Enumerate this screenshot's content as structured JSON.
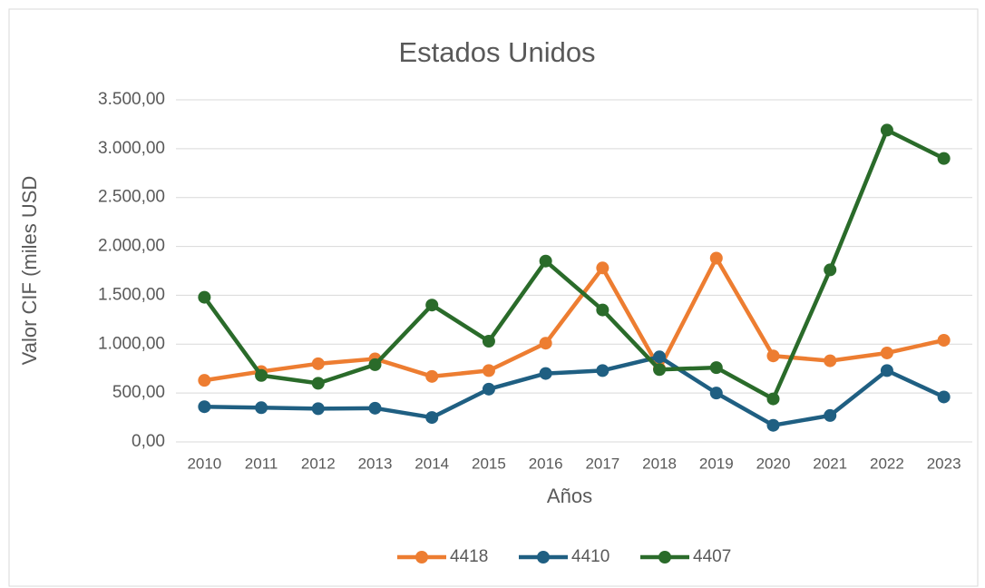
{
  "chart_data": {
    "type": "line",
    "title": "Estados Unidos",
    "x_label": "Años",
    "y_label": "Valor CIF (miles USD",
    "categories": [
      "2010",
      "2011",
      "2012",
      "2013",
      "2014",
      "2015",
      "2016",
      "2017",
      "2018",
      "2019",
      "2020",
      "2021",
      "2022",
      "2023"
    ],
    "series": [
      {
        "name": "4418",
        "color": "#ed7d31",
        "values": [
          630,
          720,
          800,
          850,
          670,
          730,
          1010,
          1780,
          750,
          1880,
          880,
          830,
          910,
          1040
        ]
      },
      {
        "name": "4410",
        "color": "#1f5f82",
        "values": [
          360,
          350,
          340,
          345,
          250,
          540,
          700,
          730,
          870,
          500,
          170,
          270,
          730,
          460
        ]
      },
      {
        "name": "4407",
        "color": "#2a6b2a",
        "values": [
          1480,
          680,
          600,
          790,
          1400,
          1030,
          1850,
          1350,
          740,
          760,
          440,
          1760,
          3190,
          2900
        ]
      }
    ],
    "ylim": [
      0,
      3500
    ],
    "yticks": [
      {
        "value": 0,
        "label": "0,00"
      },
      {
        "value": 500,
        "label": "500,00"
      },
      {
        "value": 1000,
        "label": "1.000,00"
      },
      {
        "value": 1500,
        "label": "1.500,00"
      },
      {
        "value": 2000,
        "label": "2.000,00"
      },
      {
        "value": 2500,
        "label": "2.500,00"
      },
      {
        "value": 3000,
        "label": "3.000,00"
      },
      {
        "value": 3500,
        "label": "3.500,00"
      }
    ],
    "grid": true,
    "legend": "bottom"
  }
}
